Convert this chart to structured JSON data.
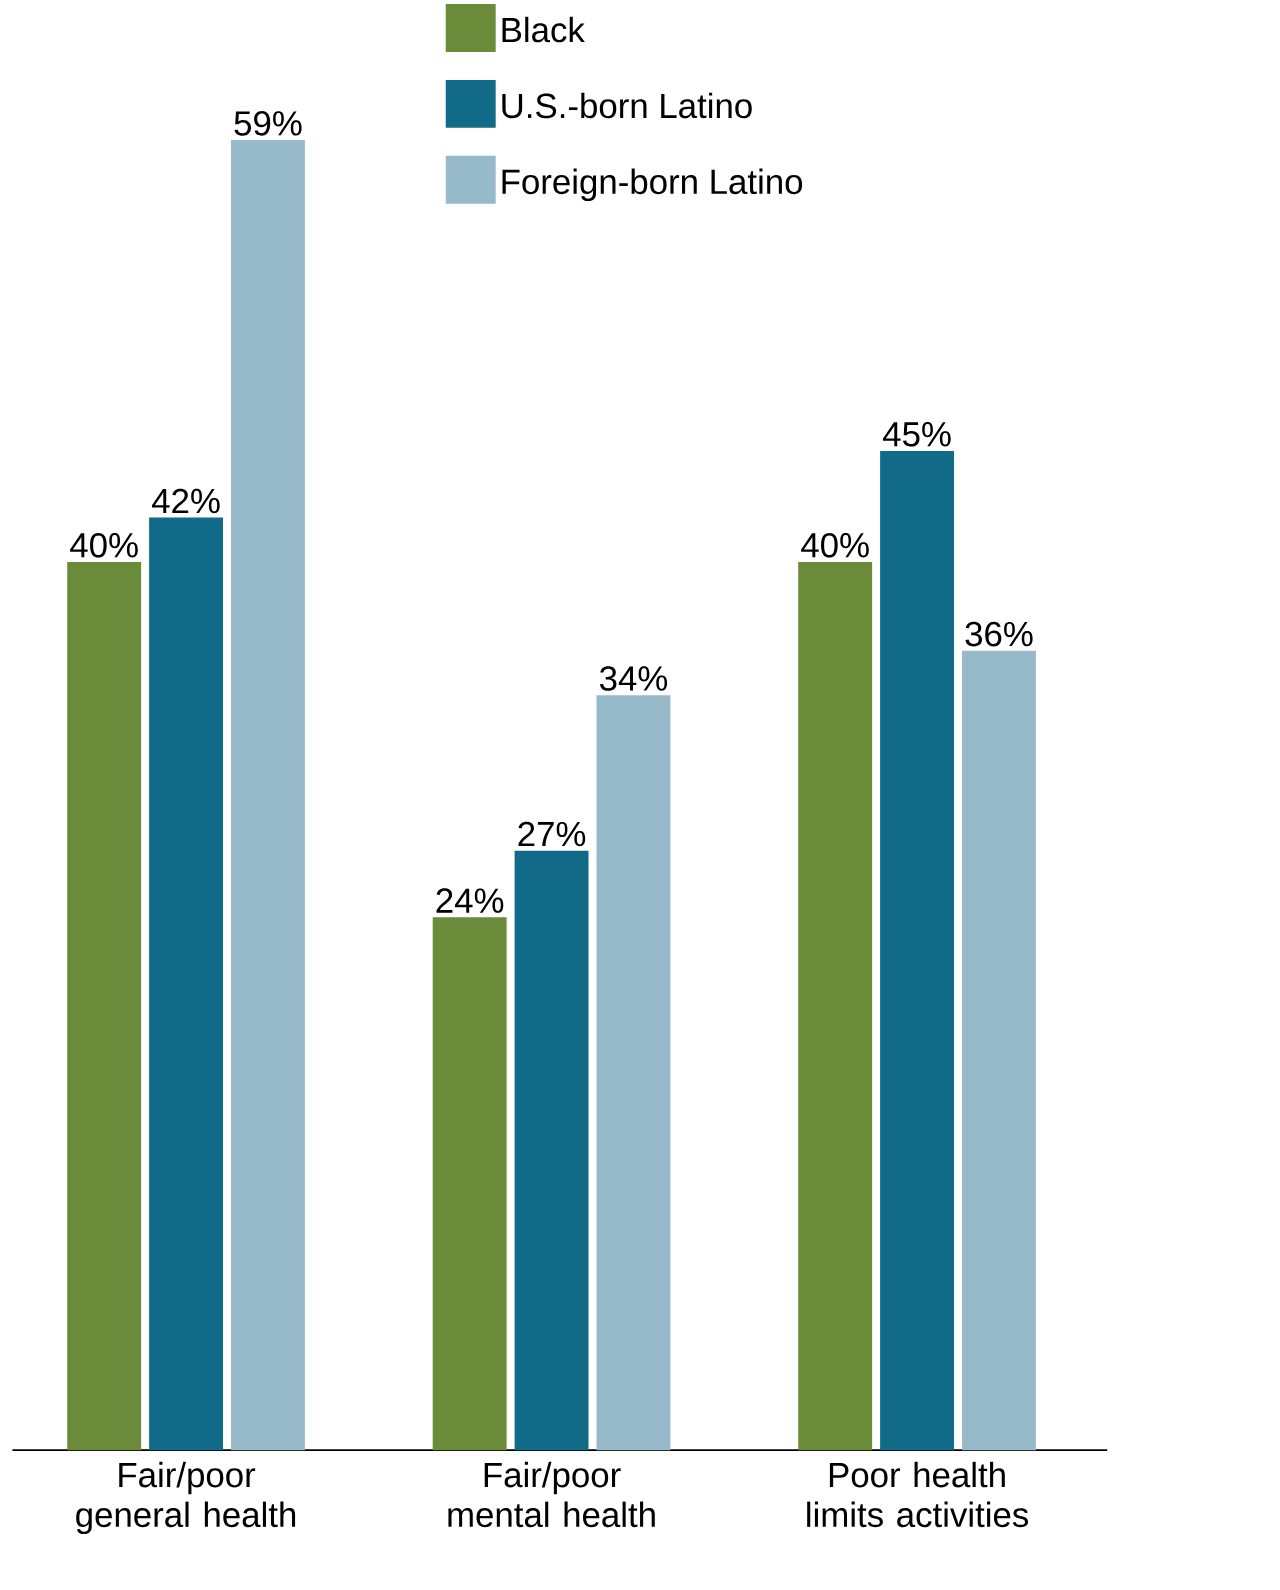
{
  "chart_data": {
    "type": "bar",
    "categories": [
      "Fair/poor general health",
      "Fair/poor mental health",
      "Poor health limits activities"
    ],
    "series": [
      {
        "name": "Black",
        "color": "#6a8c3a",
        "values": [
          40,
          24,
          40
        ],
        "value_labels": [
          "40%",
          "24%",
          "40%"
        ]
      },
      {
        "name": "U.S.-born Latino",
        "color": "#116b88",
        "values": [
          42,
          27,
          45
        ],
        "value_labels": [
          "42%",
          "27%",
          "45%"
        ]
      },
      {
        "name": "Foreign-born Latino",
        "color": "#97bacb",
        "values": [
          59,
          34,
          36
        ],
        "value_labels": [
          "59%",
          "34%",
          "36%"
        ]
      }
    ],
    "legend": "top"
  }
}
